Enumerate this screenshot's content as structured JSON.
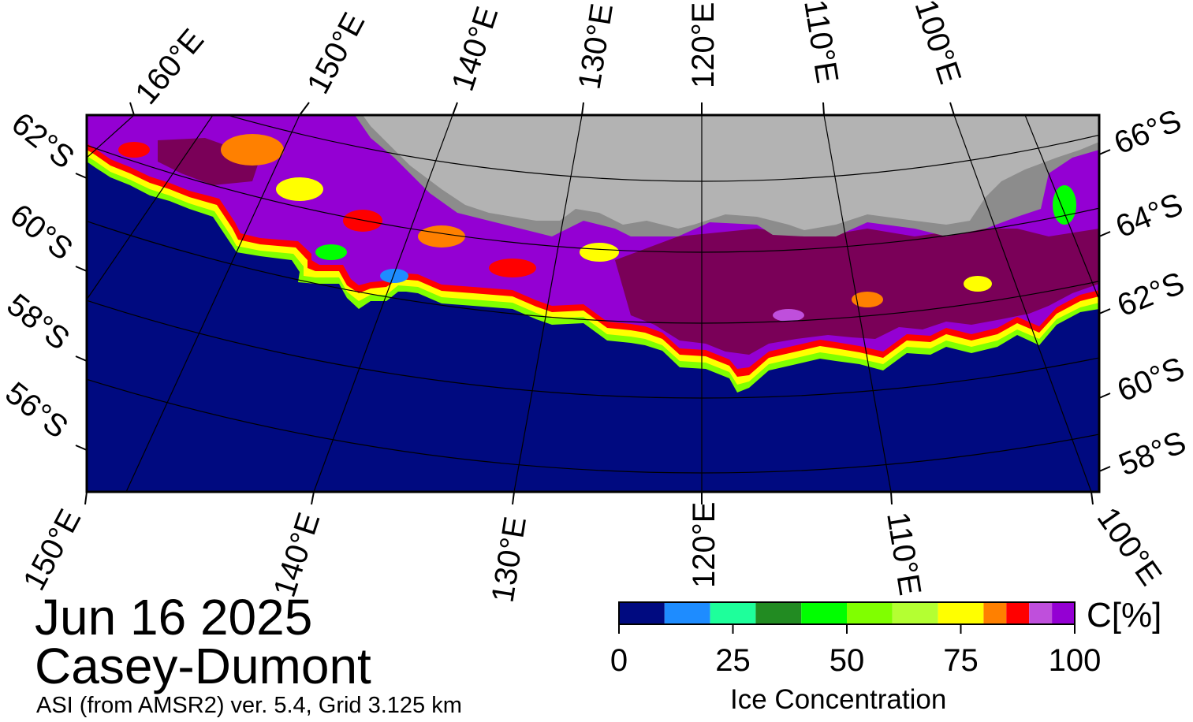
{
  "map": {
    "date": "Jun 16 2025",
    "region": "Casey-Dumont",
    "source": "ASI (from AMSR2) ver. 5.4,  Grid 3.125 km",
    "top_longitude_labels": [
      "160°E",
      "150°E",
      "140°E",
      "130°E",
      "120°E",
      "110°E",
      "100°E"
    ],
    "bottom_longitude_labels": [
      "150°E",
      "140°E",
      "130°E",
      "120°E",
      "110°E",
      "100°E"
    ],
    "left_latitude_labels": [
      "62°S",
      "60°S",
      "58°S",
      "56°S"
    ],
    "right_latitude_labels": [
      "66°S",
      "64°S",
      "62°S",
      "60°S",
      "58°S"
    ],
    "colors": {
      "open_ocean": "#000a80",
      "land": "#b3b3b3",
      "ice_shelf": "#8c8c8c",
      "dense_ice": "#7a0058"
    }
  },
  "legend": {
    "title": "Ice Concentration",
    "unit": "C[%]",
    "tick_labels": [
      "0",
      "25",
      "50",
      "75",
      "100"
    ],
    "bins": [
      {
        "range": "0-10",
        "color": "#000a80"
      },
      {
        "range": "10-20",
        "color": "#1e8cff"
      },
      {
        "range": "20-30",
        "color": "#1eff9b"
      },
      {
        "range": "30-40",
        "color": "#228b22"
      },
      {
        "range": "40-50",
        "color": "#00ff00"
      },
      {
        "range": "50-60",
        "color": "#80ff00"
      },
      {
        "range": "60-70",
        "color": "#b4ff32"
      },
      {
        "range": "70-80",
        "color": "#ffff00"
      },
      {
        "range": "80-85",
        "color": "#ff8000"
      },
      {
        "range": "85-90",
        "color": "#ff0000"
      },
      {
        "range": "90-95",
        "color": "#bf4fdc"
      },
      {
        "range": "95-100",
        "color": "#9400d3"
      }
    ]
  }
}
